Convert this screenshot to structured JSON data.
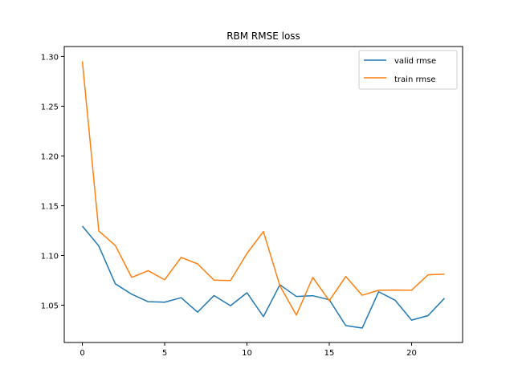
{
  "chart_data": {
    "type": "line",
    "title": "RBM RMSE loss",
    "xlabel": "",
    "ylabel": "",
    "x": [
      0,
      1,
      2,
      3,
      4,
      5,
      6,
      7,
      8,
      9,
      10,
      11,
      12,
      13,
      14,
      15,
      16,
      17,
      18,
      19,
      20,
      21,
      22
    ],
    "xlim": [
      -1.1,
      23.1
    ],
    "ylim": [
      1.0125,
      1.31
    ],
    "xticks": [
      0,
      5,
      10,
      15,
      20
    ],
    "xtick_labels": [
      "0",
      "5",
      "10",
      "15",
      "20"
    ],
    "yticks": [
      1.05,
      1.1,
      1.15,
      1.2,
      1.25,
      1.3
    ],
    "ytick_labels": [
      "1.05",
      "1.10",
      "1.15",
      "1.20",
      "1.25",
      "1.30"
    ],
    "grid": false,
    "legend_position": "top-right",
    "series": [
      {
        "name": "valid rmse",
        "color": "#1f77b4",
        "values": [
          1.1295,
          1.1095,
          1.0715,
          1.061,
          1.0535,
          1.053,
          1.0575,
          1.043,
          1.0597,
          1.0495,
          1.0625,
          1.0385,
          1.0705,
          1.0588,
          1.0595,
          1.0555,
          1.0295,
          1.027,
          1.0635,
          1.055,
          1.035,
          1.0395,
          1.057
        ]
      },
      {
        "name": "train rmse",
        "color": "#ff7f0e",
        "values": [
          1.295,
          1.1245,
          1.11,
          1.078,
          1.0847,
          1.0755,
          1.098,
          1.0915,
          1.0752,
          1.0748,
          1.102,
          1.124,
          1.0695,
          1.04,
          1.078,
          1.0545,
          1.0788,
          1.06,
          1.065,
          1.0652,
          1.065,
          1.0805,
          1.0812
        ]
      }
    ]
  }
}
